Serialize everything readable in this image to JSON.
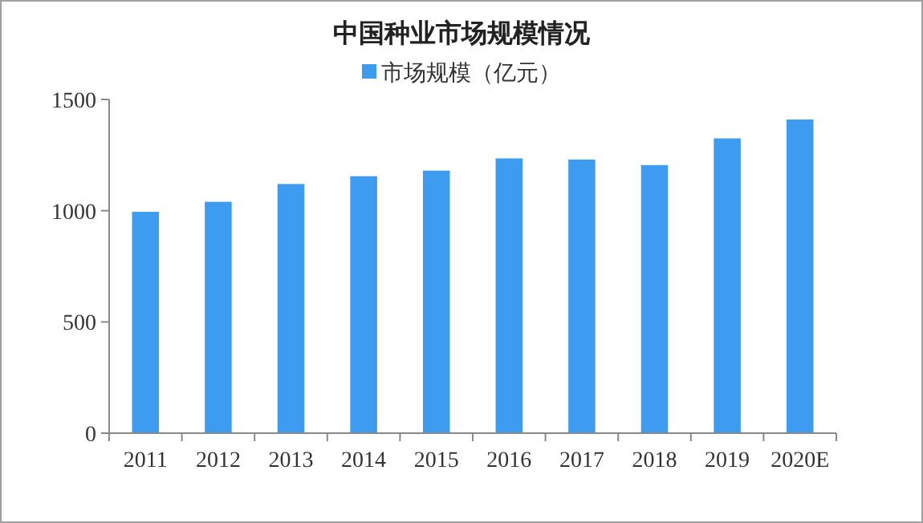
{
  "chart_data": {
    "type": "bar",
    "title": "中国种业市场规模情况",
    "categories": [
      "2011",
      "2012",
      "2013",
      "2014",
      "2015",
      "2016",
      "2017",
      "2018",
      "2019",
      "2020E"
    ],
    "series": [
      {
        "name": "市场规模（亿元）",
        "color": "#3d9cf0",
        "values": [
          995,
          1040,
          1120,
          1155,
          1180,
          1235,
          1230,
          1205,
          1325,
          1410
        ]
      }
    ],
    "ylim": [
      0,
      1500
    ],
    "yticks": [
      0,
      500,
      1000,
      1500
    ],
    "grid": false,
    "legend": "top"
  }
}
